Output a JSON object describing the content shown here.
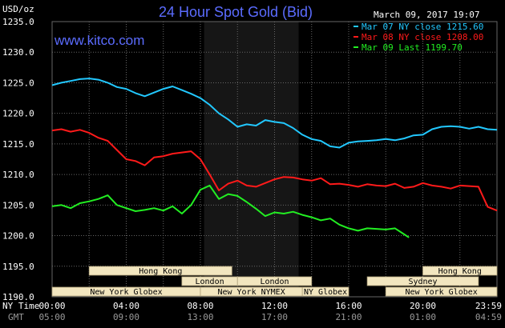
{
  "chart_data": {
    "type": "line",
    "title": "24 Hour Spot Gold (Bid)",
    "site": "www.kitco.com",
    "timestamp": "March 09, 2017 19:07",
    "ylabel": "USD/oz",
    "ylim": [
      1190,
      1235
    ],
    "yticks": [
      "1235.0",
      "1230.0",
      "1225.0",
      "1220.0",
      "1215.0",
      "1210.0",
      "1205.0",
      "1200.0",
      "1195.0",
      "1190.0"
    ],
    "x_label_ny": "NY Time",
    "x_label_gmt": "GMT",
    "x_ticks_ny": [
      "00:00",
      "04:00",
      "08:00",
      "12:00",
      "16:00",
      "20:00",
      "23:59"
    ],
    "x_ticks_gmt": [
      "05:00",
      "09:00",
      "13:00",
      "17:00",
      "21:00",
      "01:00",
      "04:59"
    ],
    "shaded_session": [
      8.2,
      13.3
    ],
    "grid": true,
    "legend_position": "top-right",
    "markets": [
      {
        "name": "Hong Kong",
        "row": 0,
        "start": 2.0,
        "end": 9.7
      },
      {
        "name": "Hong Kong",
        "row": 0,
        "start": 20.0,
        "end": 24.0
      },
      {
        "name": "London",
        "row": 1,
        "start": 7.0,
        "end": 10.0
      },
      {
        "name": "London",
        "row": 1,
        "start": 10.0,
        "end": 14.0
      },
      {
        "name": "Sydney",
        "row": 1,
        "start": 17.0,
        "end": 23.0
      },
      {
        "name": "New York Globex",
        "row": 2,
        "start": 0.0,
        "end": 8.0
      },
      {
        "name": "New York NYMEX",
        "row": 2,
        "start": 8.0,
        "end": 13.5
      },
      {
        "name": "NY Globex",
        "row": 2,
        "start": 13.5,
        "end": 16.0
      },
      {
        "name": "New York Globex",
        "row": 2,
        "start": 18.0,
        "end": 24.0
      }
    ],
    "series": [
      {
        "name": "Mar 07 NY close 1215.60",
        "color": "#22c8ff",
        "x": [
          0,
          0.5,
          1,
          1.5,
          2,
          2.5,
          3,
          3.5,
          4,
          4.5,
          5,
          5.5,
          6,
          6.5,
          7,
          7.5,
          8,
          8.5,
          9,
          9.5,
          10,
          10.5,
          11,
          11.5,
          12,
          12.5,
          13,
          13.5,
          14,
          14.5,
          15,
          15.5,
          16,
          16.5,
          17,
          17.5,
          18,
          18.5,
          19,
          19.5,
          20,
          20.5,
          21,
          21.5,
          22,
          22.5,
          23,
          23.5,
          24
        ],
        "values": [
          1224.6,
          1225.0,
          1225.3,
          1225.6,
          1225.7,
          1225.5,
          1225.0,
          1224.3,
          1224.0,
          1223.3,
          1222.8,
          1223.4,
          1224.0,
          1224.4,
          1223.8,
          1223.2,
          1222.5,
          1221.4,
          1220.0,
          1219.0,
          1217.8,
          1218.2,
          1218.0,
          1218.9,
          1218.6,
          1218.4,
          1217.6,
          1216.5,
          1215.8,
          1215.5,
          1214.6,
          1214.4,
          1215.2,
          1215.4,
          1215.5,
          1215.6,
          1215.8,
          1215.6,
          1215.9,
          1216.4,
          1216.5,
          1217.4,
          1217.8,
          1217.9,
          1217.8,
          1217.5,
          1217.8,
          1217.4,
          1217.3
        ]
      },
      {
        "name": "Mar 08 NY close 1208.00",
        "color": "#ff1a1a",
        "x": [
          0,
          0.5,
          1,
          1.5,
          2,
          2.5,
          3,
          3.5,
          4,
          4.5,
          5,
          5.5,
          6,
          6.5,
          7,
          7.5,
          8,
          8.5,
          9,
          9.5,
          10,
          10.5,
          11,
          11.5,
          12,
          12.5,
          13,
          13.5,
          14,
          14.5,
          15,
          15.5,
          16,
          16.5,
          17,
          17.5,
          18,
          18.5,
          19,
          19.5,
          20,
          20.5,
          21,
          21.5,
          22,
          22.5,
          23,
          23.5,
          24
        ],
        "values": [
          1217.2,
          1217.4,
          1217.0,
          1217.3,
          1216.8,
          1216.0,
          1215.5,
          1214.0,
          1212.5,
          1212.2,
          1211.5,
          1212.8,
          1213.0,
          1213.4,
          1213.6,
          1213.8,
          1212.5,
          1210.0,
          1207.4,
          1208.5,
          1209.0,
          1208.2,
          1208.0,
          1208.6,
          1209.2,
          1209.6,
          1209.5,
          1209.2,
          1209.0,
          1209.4,
          1208.4,
          1208.5,
          1208.3,
          1208.0,
          1208.4,
          1208.2,
          1208.1,
          1208.5,
          1207.8,
          1208.0,
          1208.6,
          1208.2,
          1208.0,
          1207.7,
          1208.2,
          1208.1,
          1208.0,
          1204.7,
          1204.1
        ]
      },
      {
        "name": "Mar 09 Last 1199.70",
        "color": "#22ee22",
        "x": [
          0,
          0.5,
          1,
          1.5,
          2,
          2.5,
          3,
          3.5,
          4,
          4.5,
          5,
          5.5,
          6,
          6.5,
          7,
          7.5,
          8,
          8.5,
          9,
          9.5,
          10,
          10.5,
          11,
          11.5,
          12,
          12.5,
          13,
          13.5,
          14,
          14.5,
          15,
          15.5,
          16,
          16.5,
          17,
          17.5,
          18,
          18.5,
          19,
          19.25
        ],
        "values": [
          1204.8,
          1205.0,
          1204.5,
          1205.3,
          1205.6,
          1206.0,
          1206.6,
          1205.0,
          1204.5,
          1204.0,
          1204.2,
          1204.5,
          1204.1,
          1204.8,
          1203.6,
          1205.0,
          1207.5,
          1208.2,
          1206.0,
          1206.8,
          1206.5,
          1205.5,
          1204.4,
          1203.2,
          1203.8,
          1203.6,
          1203.9,
          1203.4,
          1203.0,
          1202.5,
          1202.8,
          1201.8,
          1201.2,
          1200.8,
          1201.2,
          1201.1,
          1201.0,
          1201.2,
          1200.2,
          1199.7
        ]
      }
    ]
  }
}
